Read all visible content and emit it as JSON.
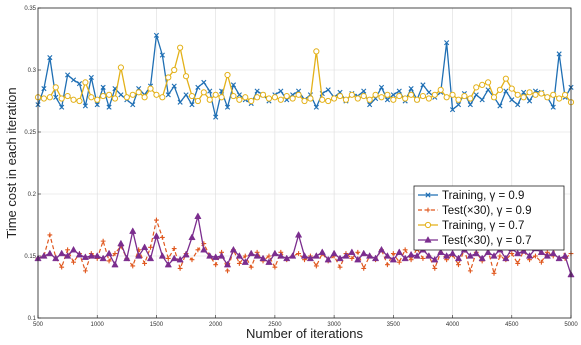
{
  "chart_data": {
    "type": "line",
    "xlabel": "Number of iterations",
    "ylabel": "Time cost in each iteration",
    "xlim": [
      500,
      5000
    ],
    "ylim": [
      0.1,
      0.35
    ],
    "xticks": [
      500,
      1000,
      1500,
      2000,
      2500,
      3000,
      3500,
      4000,
      4500,
      5000
    ],
    "yticks": [
      0.1,
      0.15,
      0.2,
      0.25,
      0.3,
      0.35
    ],
    "xtick_labels": [
      "500",
      "1000",
      "1500",
      "2000",
      "2500",
      "3000",
      "3500",
      "4000",
      "4500",
      "5000"
    ],
    "ytick_labels": [
      "0.1",
      "0.15",
      "0.2",
      "0.25",
      "0.3",
      "0.35"
    ],
    "grid": true,
    "legend_position": "middle-right",
    "series": [
      {
        "name": "Training, γ = 0.9",
        "color": "#1f6fb4",
        "marker": "x",
        "dash": "solid",
        "x": [
          500,
          550,
          600,
          650,
          700,
          750,
          800,
          850,
          900,
          950,
          1000,
          1050,
          1100,
          1150,
          1200,
          1250,
          1300,
          1350,
          1400,
          1450,
          1500,
          1550,
          1600,
          1650,
          1700,
          1750,
          1800,
          1850,
          1900,
          1950,
          2000,
          2050,
          2100,
          2150,
          2200,
          2250,
          2300,
          2350,
          2400,
          2450,
          2500,
          2550,
          2600,
          2650,
          2700,
          2750,
          2800,
          2850,
          2900,
          2950,
          3000,
          3050,
          3100,
          3150,
          3200,
          3250,
          3300,
          3350,
          3400,
          3450,
          3500,
          3550,
          3600,
          3650,
          3700,
          3750,
          3800,
          3850,
          3900,
          3950,
          4000,
          4050,
          4100,
          4150,
          4200,
          4250,
          4300,
          4350,
          4400,
          4450,
          4500,
          4550,
          4600,
          4650,
          4700,
          4750,
          4800,
          4850,
          4900,
          4950,
          5000
        ],
        "y": [
          0.272,
          0.285,
          0.31,
          0.278,
          0.27,
          0.296,
          0.292,
          0.289,
          0.271,
          0.294,
          0.272,
          0.286,
          0.27,
          0.285,
          0.28,
          0.276,
          0.272,
          0.285,
          0.28,
          0.287,
          0.328,
          0.312,
          0.28,
          0.287,
          0.274,
          0.28,
          0.272,
          0.286,
          0.29,
          0.283,
          0.262,
          0.283,
          0.27,
          0.288,
          0.28,
          0.276,
          0.273,
          0.283,
          0.28,
          0.275,
          0.28,
          0.283,
          0.276,
          0.28,
          0.283,
          0.276,
          0.28,
          0.27,
          0.281,
          0.284,
          0.278,
          0.282,
          0.275,
          0.281,
          0.279,
          0.283,
          0.272,
          0.277,
          0.286,
          0.276,
          0.28,
          0.283,
          0.275,
          0.285,
          0.276,
          0.288,
          0.282,
          0.278,
          0.282,
          0.322,
          0.268,
          0.272,
          0.281,
          0.272,
          0.28,
          0.276,
          0.284,
          0.278,
          0.271,
          0.283,
          0.276,
          0.272,
          0.282,
          0.275,
          0.283,
          0.282,
          0.278,
          0.27,
          0.313,
          0.278,
          0.286
        ]
      },
      {
        "name": "Test(×30), γ = 0.9",
        "color": "#e0581f",
        "marker": "plus",
        "dash": "dashed",
        "x": [
          500,
          550,
          600,
          650,
          700,
          750,
          800,
          850,
          900,
          950,
          1000,
          1050,
          1100,
          1150,
          1200,
          1250,
          1300,
          1350,
          1400,
          1450,
          1500,
          1550,
          1600,
          1650,
          1700,
          1750,
          1800,
          1850,
          1900,
          1950,
          2000,
          2050,
          2100,
          2150,
          2200,
          2250,
          2300,
          2350,
          2400,
          2450,
          2500,
          2550,
          2600,
          2650,
          2700,
          2750,
          2800,
          2850,
          2900,
          2950,
          3000,
          3050,
          3100,
          3150,
          3200,
          3250,
          3300,
          3350,
          3400,
          3450,
          3500,
          3550,
          3600,
          3650,
          3700,
          3750,
          3800,
          3850,
          3900,
          3950,
          4000,
          4050,
          4100,
          4150,
          4200,
          4250,
          4300,
          4350,
          4400,
          4450,
          4500,
          4550,
          4600,
          4650,
          4700,
          4750,
          4800,
          4850,
          4900,
          4950,
          5000
        ],
        "y": [
          0.148,
          0.15,
          0.167,
          0.149,
          0.141,
          0.155,
          0.145,
          0.152,
          0.138,
          0.152,
          0.148,
          0.162,
          0.146,
          0.152,
          0.158,
          0.148,
          0.142,
          0.155,
          0.144,
          0.157,
          0.179,
          0.165,
          0.148,
          0.156,
          0.14,
          0.152,
          0.147,
          0.155,
          0.16,
          0.15,
          0.143,
          0.153,
          0.138,
          0.155,
          0.144,
          0.15,
          0.141,
          0.153,
          0.146,
          0.15,
          0.141,
          0.153,
          0.147,
          0.15,
          0.152,
          0.147,
          0.15,
          0.142,
          0.152,
          0.146,
          0.15,
          0.141,
          0.152,
          0.148,
          0.153,
          0.14,
          0.15,
          0.147,
          0.155,
          0.143,
          0.152,
          0.145,
          0.155,
          0.147,
          0.156,
          0.148,
          0.15,
          0.14,
          0.153,
          0.147,
          0.151,
          0.143,
          0.155,
          0.138,
          0.153,
          0.146,
          0.155,
          0.136,
          0.15,
          0.147,
          0.152,
          0.144,
          0.154,
          0.147,
          0.15,
          0.145,
          0.153,
          0.15,
          0.175,
          0.148,
          0.152
        ]
      },
      {
        "name": "Training, γ = 0.7",
        "color": "#e3b119",
        "marker": "circle",
        "dash": "solid",
        "x": [
          500,
          550,
          600,
          650,
          700,
          750,
          800,
          850,
          900,
          950,
          1000,
          1050,
          1100,
          1150,
          1200,
          1250,
          1300,
          1350,
          1400,
          1450,
          1500,
          1550,
          1600,
          1650,
          1700,
          1750,
          1800,
          1850,
          1900,
          1950,
          2000,
          2050,
          2100,
          2150,
          2200,
          2250,
          2300,
          2350,
          2400,
          2450,
          2500,
          2550,
          2600,
          2650,
          2700,
          2750,
          2800,
          2850,
          2900,
          2950,
          3000,
          3050,
          3100,
          3150,
          3200,
          3250,
          3300,
          3350,
          3400,
          3450,
          3500,
          3550,
          3600,
          3650,
          3700,
          3750,
          3800,
          3850,
          3900,
          3950,
          4000,
          4050,
          4100,
          4150,
          4200,
          4250,
          4300,
          4350,
          4400,
          4450,
          4500,
          4550,
          4600,
          4650,
          4700,
          4750,
          4800,
          4850,
          4900,
          4950,
          5000
        ],
        "y": [
          0.278,
          0.277,
          0.278,
          0.286,
          0.277,
          0.279,
          0.276,
          0.275,
          0.29,
          0.278,
          0.276,
          0.279,
          0.28,
          0.277,
          0.302,
          0.278,
          0.28,
          0.282,
          0.278,
          0.285,
          0.28,
          0.278,
          0.294,
          0.3,
          0.318,
          0.295,
          0.279,
          0.275,
          0.282,
          0.276,
          0.28,
          0.278,
          0.296,
          0.279,
          0.276,
          0.278,
          0.275,
          0.278,
          0.28,
          0.277,
          0.278,
          0.276,
          0.279,
          0.277,
          0.28,
          0.275,
          0.277,
          0.315,
          0.276,
          0.275,
          0.277,
          0.279,
          0.276,
          0.28,
          0.277,
          0.279,
          0.276,
          0.28,
          0.278,
          0.28,
          0.276,
          0.279,
          0.277,
          0.28,
          0.276,
          0.279,
          0.277,
          0.28,
          0.284,
          0.278,
          0.28,
          0.276,
          0.279,
          0.277,
          0.286,
          0.288,
          0.29,
          0.278,
          0.284,
          0.293,
          0.285,
          0.28,
          0.278,
          0.282,
          0.28,
          0.281,
          0.278,
          0.28,
          0.277,
          0.28,
          0.274
        ]
      },
      {
        "name": "Test(×30), γ = 0.7",
        "color": "#7b2d8e",
        "marker": "triangle",
        "dash": "solid",
        "x": [
          500,
          550,
          600,
          650,
          700,
          750,
          800,
          850,
          900,
          950,
          1000,
          1050,
          1100,
          1150,
          1200,
          1250,
          1300,
          1350,
          1400,
          1450,
          1500,
          1550,
          1600,
          1650,
          1700,
          1750,
          1800,
          1850,
          1900,
          1950,
          2000,
          2050,
          2100,
          2150,
          2200,
          2250,
          2300,
          2350,
          2400,
          2450,
          2500,
          2550,
          2600,
          2650,
          2700,
          2750,
          2800,
          2850,
          2900,
          2950,
          3000,
          3050,
          3100,
          3150,
          3200,
          3250,
          3300,
          3350,
          3400,
          3450,
          3500,
          3550,
          3600,
          3650,
          3700,
          3750,
          3800,
          3850,
          3900,
          3950,
          4000,
          4050,
          4100,
          4150,
          4200,
          4250,
          4300,
          4350,
          4400,
          4450,
          4500,
          4550,
          4600,
          4650,
          4700,
          4750,
          4800,
          4850,
          4900,
          4950,
          5000
        ],
        "y": [
          0.148,
          0.15,
          0.152,
          0.148,
          0.152,
          0.15,
          0.155,
          0.151,
          0.149,
          0.15,
          0.15,
          0.148,
          0.152,
          0.143,
          0.16,
          0.148,
          0.17,
          0.15,
          0.157,
          0.148,
          0.166,
          0.15,
          0.143,
          0.148,
          0.147,
          0.151,
          0.165,
          0.182,
          0.155,
          0.15,
          0.149,
          0.15,
          0.143,
          0.155,
          0.15,
          0.145,
          0.152,
          0.15,
          0.148,
          0.145,
          0.152,
          0.15,
          0.148,
          0.15,
          0.167,
          0.15,
          0.148,
          0.15,
          0.153,
          0.147,
          0.152,
          0.148,
          0.15,
          0.153,
          0.147,
          0.152,
          0.15,
          0.148,
          0.155,
          0.15,
          0.147,
          0.153,
          0.148,
          0.151,
          0.15,
          0.155,
          0.15,
          0.147,
          0.153,
          0.15,
          0.152,
          0.148,
          0.155,
          0.15,
          0.152,
          0.148,
          0.153,
          0.15,
          0.155,
          0.148,
          0.156,
          0.152,
          0.154,
          0.15,
          0.156,
          0.153,
          0.15,
          0.152,
          0.148,
          0.15,
          0.135
        ]
      }
    ]
  }
}
